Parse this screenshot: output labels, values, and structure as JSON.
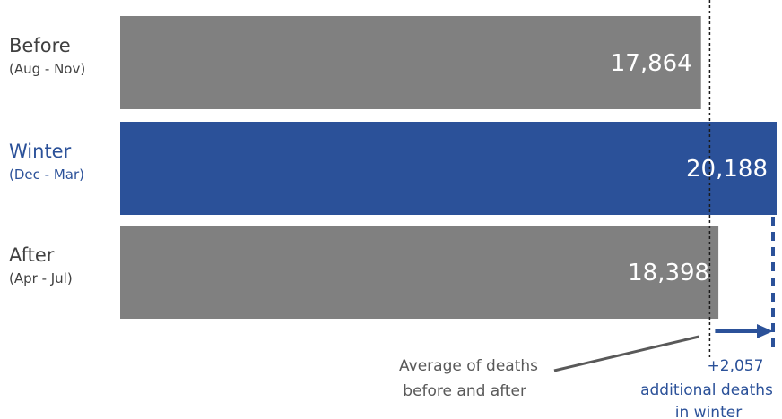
{
  "chart_data": {
    "type": "bar",
    "orientation": "horizontal",
    "categories": [
      {
        "name": "Before",
        "period": "(Aug - Nov)",
        "value": 17864,
        "value_label": "17,864",
        "highlight": false
      },
      {
        "name": "Winter",
        "period": "(Dec - Mar)",
        "value": 20188,
        "value_label": "20,188",
        "highlight": true
      },
      {
        "name": "After",
        "period": "(Apr - Jul)",
        "value": 18398,
        "value_label": "18,398",
        "highlight": false
      }
    ],
    "reference_line": {
      "value": 18131,
      "label_line1": "Average of deaths",
      "label_line2": "before and after"
    },
    "difference": {
      "value": 2057,
      "label_line1": "+2,057",
      "label_line2": "additional deaths",
      "label_line3": "in winter"
    },
    "xlim": [
      0,
      20188
    ],
    "grid": false,
    "legend": "none"
  },
  "colors": {
    "bar_default": "#808080",
    "bar_highlight": "#2b5199",
    "text_default": "#404040",
    "text_highlight": "#2b5199",
    "annotation": "#595959",
    "reference_line": "#1a1a1a"
  }
}
